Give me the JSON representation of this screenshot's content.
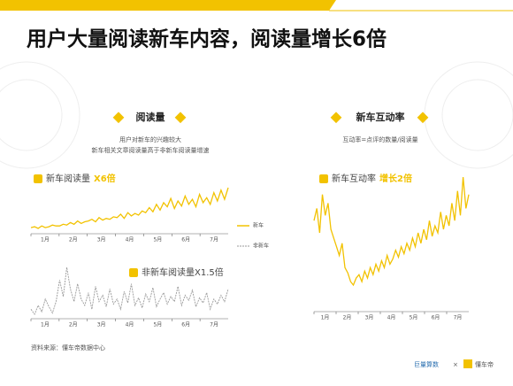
{
  "header": {
    "title": "用户大量阅读新车内容，阅读量增长6倍"
  },
  "panels": [
    {
      "heading": "阅读量",
      "desc": [
        "用户对新车的兴趣较大",
        "新车相关文章阅读量高于非新车阅读量增速"
      ]
    },
    {
      "heading": "新车互动率",
      "desc": [
        "互动率=点评的数量/阅读量"
      ]
    }
  ],
  "source": "资料来源：懂车帝数据中心",
  "logos": [
    "巨量算数",
    "×",
    "懂车帝"
  ],
  "chart_data": [
    {
      "type": "line",
      "title": "新车阅读量",
      "highlight": "X6倍",
      "x_labels": [
        "1月",
        "2月",
        "3月",
        "4月",
        "5月",
        "6月",
        "7月"
      ],
      "series": [
        {
          "name": "新车",
          "color": "#f2c200",
          "dashed": false,
          "values": [
            10,
            11,
            9,
            12,
            10,
            11,
            13,
            12,
            12,
            14,
            13,
            16,
            14,
            18,
            15,
            17,
            18,
            20,
            17,
            22,
            19,
            21,
            20,
            23,
            22,
            26,
            21,
            28,
            24,
            27,
            25,
            30,
            28,
            34,
            29,
            38,
            31,
            40,
            35,
            45,
            33,
            42,
            36,
            48,
            38,
            44,
            35,
            50,
            40,
            46,
            38,
            52,
            42,
            55,
            44,
            58
          ]
        }
      ]
    },
    {
      "type": "line",
      "title": "非新车阅读量X1.5倍",
      "x_labels": [
        "1月",
        "2月",
        "3月",
        "4月",
        "5月",
        "6月",
        "7月"
      ],
      "series": [
        {
          "name": "非新车",
          "color": "#999999",
          "dashed": true,
          "values": [
            22,
            18,
            25,
            20,
            30,
            24,
            19,
            28,
            45,
            32,
            55,
            38,
            28,
            42,
            30,
            25,
            35,
            22,
            40,
            28,
            33,
            24,
            38,
            26,
            30,
            22,
            36,
            27,
            42,
            25,
            31,
            23,
            34,
            28,
            39,
            24,
            30,
            35,
            26,
            32,
            28,
            40,
            25,
            33,
            29,
            37,
            24,
            31,
            27,
            35,
            22,
            30,
            26,
            33,
            28,
            38
          ]
        }
      ]
    },
    {
      "type": "line",
      "title": "新车互动率",
      "highlight": "增长2倍",
      "x_labels": [
        "1月",
        "2月",
        "3月",
        "4月",
        "5月",
        "6月",
        "7月"
      ],
      "series": [
        {
          "name": "新车互动率",
          "color": "#f2c200",
          "dashed": false,
          "values": [
            55,
            62,
            48,
            70,
            58,
            65,
            50,
            45,
            40,
            35,
            42,
            28,
            25,
            20,
            18,
            22,
            24,
            20,
            26,
            22,
            28,
            24,
            30,
            26,
            32,
            28,
            35,
            30,
            33,
            38,
            34,
            40,
            36,
            42,
            38,
            45,
            40,
            48,
            42,
            50,
            44,
            55,
            46,
            52,
            48,
            60,
            50,
            58,
            52,
            65,
            55,
            72,
            58,
            80,
            62,
            70
          ]
        }
      ]
    }
  ]
}
